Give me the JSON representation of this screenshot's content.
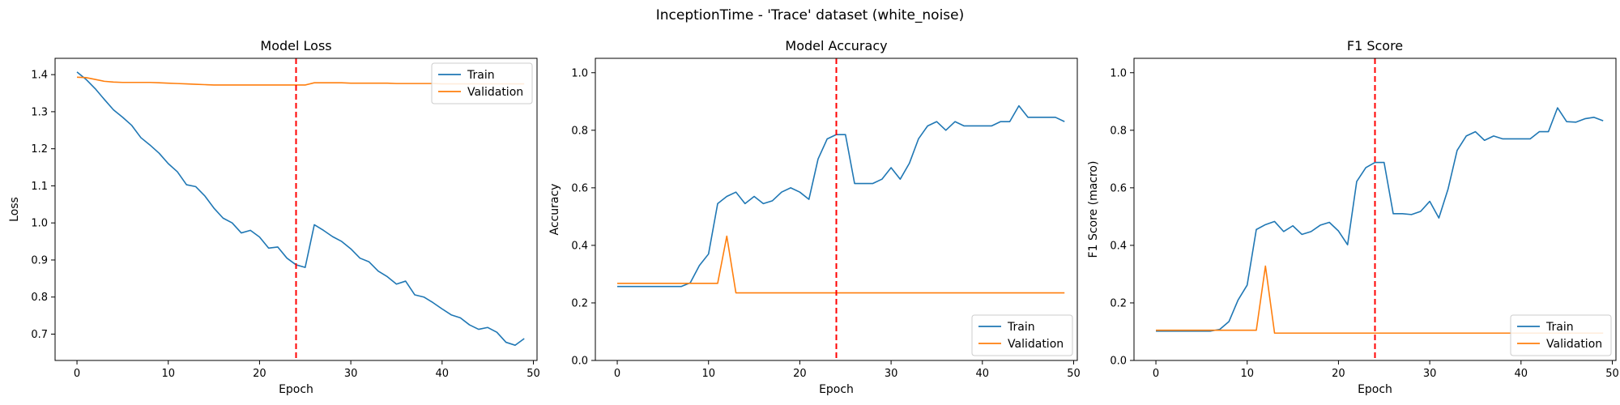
{
  "figure": {
    "suptitle": "InceptionTime - 'Trace' dataset (white_noise)"
  },
  "chart_data": [
    {
      "type": "line",
      "title": "Model Loss",
      "xlabel": "Epoch",
      "ylabel": "Loss",
      "xlim": [
        -2.4,
        50.4
      ],
      "ylim": [
        0.629,
        1.444
      ],
      "xticks": [
        0,
        10,
        20,
        30,
        40,
        50
      ],
      "yticks": [
        0.7,
        0.8,
        0.9,
        1.0,
        1.1,
        1.2,
        1.3,
        1.4
      ],
      "ytick_decimals": 1,
      "legend_position": "upper right",
      "grid": false,
      "vline": {
        "x": 24,
        "color": "#ff0000",
        "style": "dashed"
      },
      "series": [
        {
          "name": "Train",
          "color": "#1f77b4",
          "values": [
            1.407,
            1.387,
            1.362,
            1.333,
            1.305,
            1.285,
            1.263,
            1.23,
            1.21,
            1.188,
            1.16,
            1.138,
            1.103,
            1.098,
            1.073,
            1.04,
            1.013,
            1.0,
            0.973,
            0.98,
            0.962,
            0.932,
            0.935,
            0.905,
            0.887,
            0.88,
            0.995,
            0.98,
            0.963,
            0.95,
            0.93,
            0.905,
            0.895,
            0.87,
            0.855,
            0.835,
            0.843,
            0.806,
            0.8,
            0.785,
            0.768,
            0.752,
            0.744,
            0.725,
            0.713,
            0.718,
            0.705,
            0.678,
            0.67,
            0.688
          ]
        },
        {
          "name": "Validation",
          "color": "#ff7f0e",
          "values": [
            1.393,
            1.392,
            1.387,
            1.382,
            1.38,
            1.379,
            1.379,
            1.379,
            1.379,
            1.378,
            1.377,
            1.376,
            1.375,
            1.374,
            1.373,
            1.372,
            1.372,
            1.372,
            1.372,
            1.372,
            1.372,
            1.372,
            1.372,
            1.372,
            1.372,
            1.372,
            1.378,
            1.378,
            1.378,
            1.378,
            1.377,
            1.377,
            1.377,
            1.377,
            1.377,
            1.376,
            1.376,
            1.376,
            1.376,
            1.376,
            1.375,
            1.375,
            1.375,
            1.375,
            1.375,
            1.375,
            1.375,
            1.375,
            1.375,
            1.375
          ]
        }
      ]
    },
    {
      "type": "line",
      "title": "Model Accuracy",
      "xlabel": "Epoch",
      "ylabel": "Accuracy",
      "xlim": [
        -2.4,
        50.4
      ],
      "ylim": [
        0,
        1.05
      ],
      "xticks": [
        0,
        10,
        20,
        30,
        40,
        50
      ],
      "yticks": [
        0.0,
        0.2,
        0.4,
        0.6,
        0.8,
        1.0
      ],
      "ytick_decimals": 1,
      "legend_position": "lower right",
      "grid": false,
      "vline": {
        "x": 24,
        "color": "#ff0000",
        "style": "dashed"
      },
      "series": [
        {
          "name": "Train",
          "color": "#1f77b4",
          "values": [
            0.257,
            0.257,
            0.257,
            0.257,
            0.257,
            0.257,
            0.257,
            0.257,
            0.27,
            0.33,
            0.37,
            0.545,
            0.57,
            0.585,
            0.545,
            0.57,
            0.545,
            0.555,
            0.585,
            0.6,
            0.585,
            0.56,
            0.7,
            0.77,
            0.785,
            0.785,
            0.615,
            0.615,
            0.615,
            0.63,
            0.67,
            0.63,
            0.685,
            0.77,
            0.815,
            0.83,
            0.8,
            0.83,
            0.815,
            0.815,
            0.815,
            0.815,
            0.83,
            0.83,
            0.885,
            0.845,
            0.845,
            0.845,
            0.845,
            0.83
          ]
        },
        {
          "name": "Validation",
          "color": "#ff7f0e",
          "values": [
            0.268,
            0.268,
            0.268,
            0.268,
            0.268,
            0.268,
            0.268,
            0.268,
            0.268,
            0.268,
            0.268,
            0.268,
            0.432,
            0.235,
            0.235,
            0.235,
            0.235,
            0.235,
            0.235,
            0.235,
            0.235,
            0.235,
            0.235,
            0.235,
            0.235,
            0.235,
            0.235,
            0.235,
            0.235,
            0.235,
            0.235,
            0.235,
            0.235,
            0.235,
            0.235,
            0.235,
            0.235,
            0.235,
            0.235,
            0.235,
            0.235,
            0.235,
            0.235,
            0.235,
            0.235,
            0.235,
            0.235,
            0.235,
            0.235,
            0.235
          ]
        }
      ]
    },
    {
      "type": "line",
      "title": "F1 Score",
      "xlabel": "Epoch",
      "ylabel": "F1 Score (macro)",
      "xlim": [
        -2.4,
        50.4
      ],
      "ylim": [
        0,
        1.05
      ],
      "xticks": [
        0,
        10,
        20,
        30,
        40,
        50
      ],
      "yticks": [
        0.0,
        0.2,
        0.4,
        0.6,
        0.8,
        1.0
      ],
      "ytick_decimals": 1,
      "legend_position": "lower right",
      "grid": false,
      "vline": {
        "x": 24,
        "color": "#ff0000",
        "style": "dashed"
      },
      "series": [
        {
          "name": "Train",
          "color": "#1f77b4",
          "values": [
            0.102,
            0.102,
            0.102,
            0.102,
            0.102,
            0.102,
            0.102,
            0.108,
            0.135,
            0.21,
            0.262,
            0.455,
            0.472,
            0.483,
            0.448,
            0.468,
            0.438,
            0.448,
            0.47,
            0.48,
            0.45,
            0.402,
            0.622,
            0.67,
            0.688,
            0.688,
            0.51,
            0.51,
            0.507,
            0.518,
            0.553,
            0.495,
            0.595,
            0.73,
            0.78,
            0.795,
            0.765,
            0.78,
            0.77,
            0.77,
            0.77,
            0.77,
            0.795,
            0.795,
            0.878,
            0.83,
            0.828,
            0.84,
            0.845,
            0.833
          ]
        },
        {
          "name": "Validation",
          "color": "#ff7f0e",
          "values": [
            0.105,
            0.105,
            0.105,
            0.105,
            0.105,
            0.105,
            0.105,
            0.105,
            0.105,
            0.105,
            0.105,
            0.105,
            0.328,
            0.095,
            0.095,
            0.095,
            0.095,
            0.095,
            0.095,
            0.095,
            0.095,
            0.095,
            0.095,
            0.095,
            0.095,
            0.095,
            0.095,
            0.095,
            0.095,
            0.095,
            0.095,
            0.095,
            0.095,
            0.095,
            0.095,
            0.095,
            0.095,
            0.095,
            0.095,
            0.095,
            0.095,
            0.095,
            0.095,
            0.095,
            0.095,
            0.095,
            0.095,
            0.095,
            0.095,
            0.095
          ]
        }
      ]
    }
  ]
}
